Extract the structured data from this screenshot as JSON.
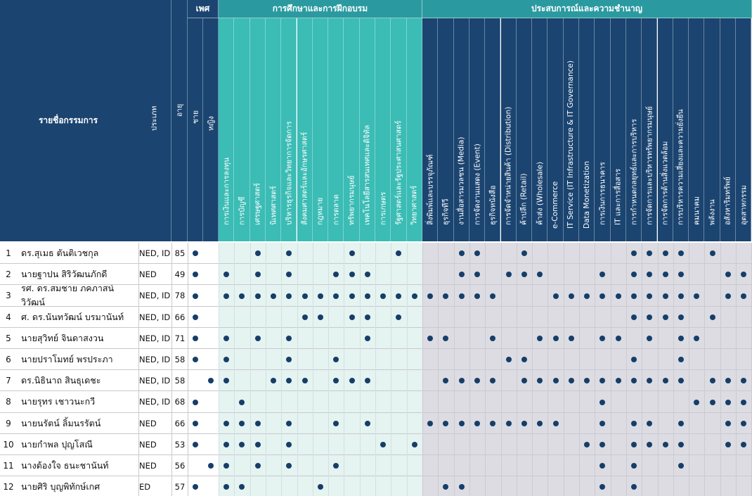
{
  "header": {
    "name_col": "รายชื่อกรรมการ",
    "type_col": "ประเภท",
    "age_col": "อายุ",
    "gender_group": "เพศ",
    "education_group": "การศึกษาและการฝึกอบรม",
    "experience_group": "ประสบการณ์และความชำนาญ"
  },
  "gender_cols": [
    "ชาย",
    "หญิง"
  ],
  "education_cols": [
    "การเงินและการลงทุน",
    "การบัญชี",
    "เศรษฐศาสตร์",
    "นิเทศศาสตร์",
    "บริหารธุรกิจและวิทยาการจัดการ",
    "สังคมศาสตร์และอักษรศาสตร์",
    "กฎหมาย",
    "การตลาด",
    "ทรัพยากรมนุษย์",
    "เทคโนโลยีสารสนเทศและดิจิทัล",
    "การเกษตร",
    "รัฐศาสตร์และรัฐประศาสนศาสตร์",
    "วิทยาศาสตร์"
  ],
  "experience_cols": [
    "สิ่งพิมพ์และบรรจุภัณฑ์",
    "ธุรกิจทีวี",
    "งานสื่อสารมวลชน (Media)",
    "การจัดงานแสดง (Event)",
    "ธุรกิจหนังสือ",
    "การจัดจำหน่ายสินค้า (Distribution)",
    "ค้าปลีก (Retail)",
    "ค้าส่ง (Wholesale)",
    "e-Commerce",
    "IT Service (IT Infrastructure & IT Governance)",
    "Data Monetization",
    "การเงินการธนาคาร",
    "IT และการสื่อสาร",
    "การกำหนดกลยุทธ์และการบริหาร",
    "การจัดการและบริหารทรัพยากรมนุษย์",
    "การจัดการด้านสิ่งแวดล้อม",
    "การบริหารความเสี่ยงและความยั่งยืน",
    "คมนาคม",
    "พลังงาน",
    "อสังหาริมทรัพย์",
    "อุตสาหกรรม"
  ],
  "directors": [
    {
      "no": "1",
      "name": "ดร.สุเมธ ตันติเวชกุล",
      "type": "NED, ID",
      "age": "85",
      "gender": [
        1,
        0
      ],
      "edu": [
        0,
        0,
        1,
        0,
        1,
        0,
        0,
        0,
        1,
        0,
        0,
        1,
        0
      ],
      "exp": [
        0,
        0,
        1,
        1,
        0,
        0,
        1,
        0,
        0,
        0,
        0,
        0,
        0,
        1,
        1,
        1,
        1,
        0,
        1,
        0,
        0
      ]
    },
    {
      "no": "2",
      "name": "นายฐาปน สิริวัฒนภักดี",
      "type": "NED",
      "age": "49",
      "gender": [
        1,
        0
      ],
      "edu": [
        1,
        0,
        1,
        0,
        1,
        0,
        0,
        1,
        1,
        1,
        0,
        0,
        0
      ],
      "exp": [
        0,
        0,
        1,
        1,
        0,
        1,
        1,
        1,
        0,
        0,
        0,
        1,
        0,
        1,
        1,
        1,
        1,
        0,
        0,
        1,
        1
      ]
    },
    {
      "no": "3",
      "name": "รศ. ดร.สมชาย ภคภาสน์วิวัฒน์",
      "type": "NED, ID",
      "age": "78",
      "gender": [
        1,
        0
      ],
      "edu": [
        1,
        1,
        1,
        1,
        1,
        1,
        1,
        1,
        1,
        1,
        1,
        1,
        1
      ],
      "exp": [
        1,
        1,
        1,
        1,
        1,
        0,
        0,
        0,
        1,
        1,
        1,
        1,
        1,
        1,
        1,
        1,
        1,
        1,
        0,
        1,
        1
      ]
    },
    {
      "no": "4",
      "name": "ศ. ดร.นันทวัฒน์ บรมานันท์",
      "type": "NED, ID",
      "age": "66",
      "gender": [
        1,
        0
      ],
      "edu": [
        0,
        0,
        0,
        0,
        0,
        1,
        1,
        0,
        1,
        1,
        0,
        1,
        0
      ],
      "exp": [
        0,
        0,
        0,
        0,
        0,
        0,
        0,
        0,
        0,
        0,
        0,
        0,
        0,
        1,
        1,
        1,
        1,
        0,
        1,
        0,
        0
      ]
    },
    {
      "no": "5",
      "name": "นายสุวิทย์ จินดาสงวน",
      "type": "NED, ID",
      "age": "71",
      "gender": [
        1,
        0
      ],
      "edu": [
        1,
        0,
        1,
        0,
        1,
        0,
        0,
        0,
        0,
        1,
        0,
        0,
        0
      ],
      "exp": [
        1,
        1,
        0,
        0,
        1,
        0,
        0,
        1,
        1,
        1,
        0,
        1,
        1,
        0,
        1,
        0,
        1,
        1,
        0,
        0,
        0
      ]
    },
    {
      "no": "6",
      "name": "นายปราโมทย์ พรประภา",
      "type": "NED, ID",
      "age": "58",
      "gender": [
        1,
        0
      ],
      "edu": [
        1,
        0,
        0,
        0,
        1,
        0,
        0,
        1,
        0,
        0,
        0,
        0,
        0
      ],
      "exp": [
        0,
        0,
        0,
        0,
        0,
        1,
        1,
        0,
        0,
        0,
        0,
        0,
        0,
        1,
        0,
        0,
        1,
        0,
        0,
        0,
        0
      ]
    },
    {
      "no": "7",
      "name": "ดร.นิธินาถ สินธุเดชะ",
      "type": "NED, ID",
      "age": "58",
      "gender": [
        0,
        1
      ],
      "edu": [
        1,
        0,
        0,
        1,
        1,
        1,
        0,
        1,
        1,
        1,
        0,
        0,
        0
      ],
      "exp": [
        0,
        1,
        1,
        1,
        1,
        0,
        1,
        1,
        1,
        1,
        1,
        1,
        1,
        1,
        1,
        1,
        1,
        0,
        1,
        1,
        1
      ]
    },
    {
      "no": "8",
      "name": "นายรุทร เชาวนะกวี",
      "type": "NED, ID",
      "age": "68",
      "gender": [
        1,
        0
      ],
      "edu": [
        0,
        1,
        0,
        0,
        0,
        0,
        0,
        0,
        0,
        0,
        0,
        0,
        0
      ],
      "exp": [
        0,
        0,
        0,
        0,
        0,
        0,
        0,
        0,
        0,
        0,
        0,
        1,
        0,
        0,
        0,
        0,
        0,
        1,
        1,
        1,
        1
      ]
    },
    {
      "no": "9",
      "name": "นายนรัตน์ ลิ้มนรรัตน์",
      "type": "NED",
      "age": "66",
      "gender": [
        1,
        0
      ],
      "edu": [
        1,
        1,
        1,
        0,
        1,
        0,
        0,
        1,
        0,
        1,
        0,
        0,
        0
      ],
      "exp": [
        1,
        1,
        1,
        1,
        1,
        1,
        1,
        1,
        1,
        0,
        0,
        1,
        0,
        1,
        1,
        0,
        1,
        0,
        0,
        1,
        1
      ]
    },
    {
      "no": "10",
      "name": "นายกำพล ปุญโสณี",
      "type": "NED",
      "age": "53",
      "gender": [
        1,
        0
      ],
      "edu": [
        1,
        1,
        1,
        0,
        1,
        0,
        0,
        0,
        0,
        0,
        1,
        0,
        1
      ],
      "exp": [
        0,
        0,
        0,
        0,
        0,
        0,
        0,
        0,
        0,
        0,
        1,
        1,
        0,
        1,
        1,
        1,
        1,
        0,
        0,
        1,
        1
      ]
    },
    {
      "no": "11",
      "name": "นางต้องใจ ธนะชานันท์",
      "type": "NED",
      "age": "56",
      "gender": [
        0,
        1
      ],
      "edu": [
        1,
        0,
        1,
        0,
        1,
        0,
        0,
        1,
        0,
        0,
        0,
        0,
        0
      ],
      "exp": [
        0,
        0,
        0,
        0,
        0,
        0,
        0,
        0,
        0,
        0,
        0,
        1,
        0,
        1,
        0,
        0,
        1,
        0,
        0,
        0,
        0
      ]
    },
    {
      "no": "12",
      "name": "นายศิริ บุญพิทักษ์เกศ",
      "type": "ED",
      "age": "57",
      "gender": [
        1,
        0
      ],
      "edu": [
        1,
        1,
        0,
        0,
        0,
        0,
        1,
        0,
        0,
        0,
        0,
        0,
        0
      ],
      "exp": [
        0,
        1,
        1,
        0,
        0,
        0,
        0,
        0,
        0,
        0,
        0,
        1,
        0,
        1,
        0,
        0,
        0,
        0,
        0,
        0,
        0
      ]
    }
  ],
  "colors": {
    "navy": "#1b4470",
    "teal": "#3bbcb5",
    "teal_dark": "#2a9aa0",
    "edu_body": "#e5f3f1",
    "exp_body": "#dcdce2",
    "dot": "#163e68"
  }
}
